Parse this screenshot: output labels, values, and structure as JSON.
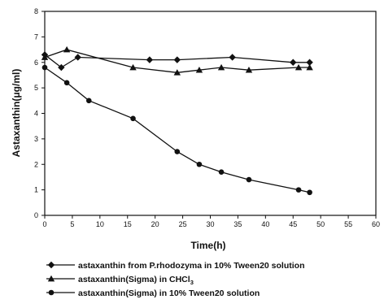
{
  "chart_data": {
    "type": "line",
    "xlabel": "Time(h)",
    "ylabel": "Astaxanthin(μg/ml)",
    "xlim": [
      0,
      60
    ],
    "ylim": [
      0,
      8
    ],
    "x_ticks": [
      "0",
      "5",
      "10",
      "15",
      "20",
      "25",
      "30",
      "35",
      "40",
      "45",
      "50",
      "55",
      "60"
    ],
    "y_ticks": [
      "0",
      "1",
      "2",
      "3",
      "4",
      "5",
      "6",
      "7",
      "8"
    ],
    "grid": false,
    "legend_position": "bottom",
    "series": [
      {
        "name": "astaxanthin from P.rhodozyma in 10% Tween20 solution",
        "marker": "diamond",
        "x": [
          0,
          3,
          6,
          19,
          24,
          34,
          45,
          48
        ],
        "y": [
          6.3,
          5.8,
          6.2,
          6.1,
          6.1,
          6.2,
          6.0,
          6.0
        ]
      },
      {
        "name": "astaxanthin(Sigma) in CHCl3",
        "name_main": "astaxanthin(Sigma) in CHCl",
        "name_sub": "3",
        "marker": "triangle",
        "x": [
          0,
          4,
          16,
          24,
          28,
          32,
          37,
          46,
          48
        ],
        "y": [
          6.2,
          6.5,
          5.8,
          5.6,
          5.7,
          5.8,
          5.7,
          5.8,
          5.8
        ]
      },
      {
        "name": "astaxanthin(Sigma) in 10% Tween20 solution",
        "marker": "circle",
        "x": [
          0,
          4,
          8,
          16,
          24,
          28,
          32,
          37,
          46,
          48
        ],
        "y": [
          5.8,
          5.2,
          4.5,
          3.8,
          2.5,
          2.0,
          1.7,
          1.4,
          1.0,
          0.9
        ]
      }
    ]
  }
}
